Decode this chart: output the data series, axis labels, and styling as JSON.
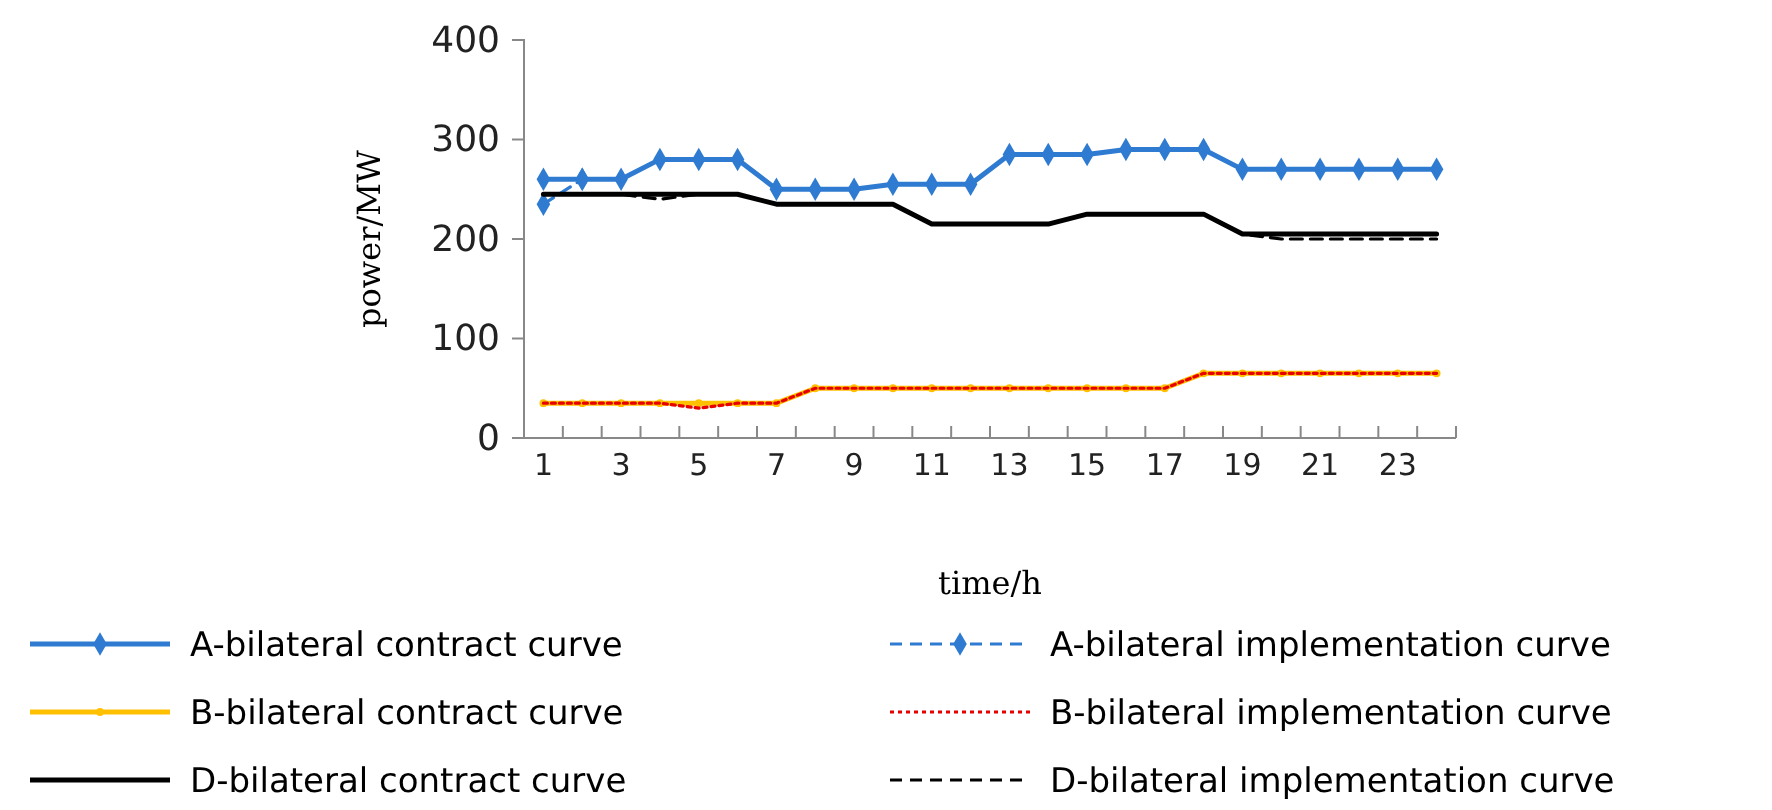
{
  "chart_data": {
    "type": "line",
    "xlabel": "time/h",
    "ylabel": "power/MW",
    "x": [
      1,
      2,
      3,
      4,
      5,
      6,
      7,
      8,
      9,
      10,
      11,
      12,
      13,
      14,
      15,
      16,
      17,
      18,
      19,
      20,
      21,
      22,
      23,
      24
    ],
    "xlim": [
      0.5,
      24.5
    ],
    "xticks": [
      1,
      3,
      5,
      7,
      9,
      11,
      13,
      15,
      17,
      19,
      21,
      23,
      {
        "value": 1.5,
        "label": null
      },
      {
        "value": 2.5,
        "label": null
      },
      {
        "value": 3.5,
        "label": null
      },
      {
        "value": 4.5,
        "label": null
      },
      {
        "value": 5.5,
        "label": null
      },
      {
        "value": 6.5,
        "label": null
      },
      {
        "value": 7.5,
        "label": null
      },
      {
        "value": 8.5,
        "label": null
      },
      {
        "value": 9.5,
        "label": null
      },
      {
        "value": 10.5,
        "label": null
      },
      {
        "value": 11.5,
        "label": null
      },
      {
        "value": 12.5,
        "label": null
      },
      {
        "value": 13.5,
        "label": null
      },
      {
        "value": 14.5,
        "label": null
      },
      {
        "value": 15.5,
        "label": null
      },
      {
        "value": 16.5,
        "label": null
      },
      {
        "value": 17.5,
        "label": null
      },
      {
        "value": 18.5,
        "label": null
      },
      {
        "value": 19.5,
        "label": null
      },
      {
        "value": 20.5,
        "label": null
      },
      {
        "value": 21.5,
        "label": null
      },
      {
        "value": 22.5,
        "label": null
      },
      {
        "value": 23.5,
        "label": null
      },
      {
        "value": 24.5,
        "label": null
      }
    ],
    "ylim": [
      0,
      400
    ],
    "yticks": [
      0,
      100,
      200,
      300,
      400
    ],
    "grid": false,
    "legend": "bottom",
    "series": [
      {
        "name": "A-bilateral contract curve",
        "color": "#2e7bd1",
        "marker": "diamond",
        "line_style": "solid",
        "values": [
          260,
          260,
          260,
          280,
          280,
          280,
          250,
          250,
          250,
          255,
          255,
          255,
          285,
          285,
          285,
          290,
          290,
          290,
          270,
          270,
          270,
          270,
          270,
          270
        ]
      },
      {
        "name": "A-bilateral implementation curve",
        "color": "#2e7bd1",
        "marker": "diamond",
        "line_style": "dashed",
        "values": [
          235,
          260,
          null,
          null,
          null,
          null,
          null,
          null,
          null,
          null,
          null,
          null,
          null,
          null,
          null,
          null,
          null,
          null,
          null,
          null,
          null,
          null,
          null,
          null
        ]
      },
      {
        "name": "B-bilateral contract curve",
        "color": "#ffc000",
        "marker": "circle",
        "line_style": "solid",
        "values": [
          35,
          35,
          35,
          35,
          35,
          35,
          35,
          50,
          50,
          50,
          50,
          50,
          50,
          50,
          50,
          50,
          50,
          65,
          65,
          65,
          65,
          65,
          65,
          65
        ]
      },
      {
        "name": "B-bilateral implementation curve",
        "color": "#e60000",
        "marker": "none",
        "line_style": "dotted",
        "values": [
          35,
          35,
          35,
          35,
          30,
          35,
          35,
          50,
          50,
          50,
          50,
          50,
          50,
          50,
          50,
          50,
          50,
          65,
          65,
          65,
          65,
          65,
          65,
          65
        ]
      },
      {
        "name": "D-bilateral contract curve",
        "color": "#000000",
        "marker": "none",
        "line_style": "solid",
        "values": [
          245,
          245,
          245,
          245,
          245,
          245,
          235,
          235,
          235,
          235,
          215,
          215,
          215,
          215,
          225,
          225,
          225,
          225,
          205,
          205,
          205,
          205,
          205,
          205
        ]
      },
      {
        "name": "D-bilateral implementation curve",
        "color": "#000000",
        "marker": "none",
        "line_style": "dashed",
        "values": [
          245,
          245,
          245,
          240,
          245,
          245,
          235,
          235,
          235,
          235,
          215,
          215,
          215,
          215,
          225,
          225,
          225,
          225,
          205,
          200,
          200,
          200,
          200,
          200
        ]
      }
    ]
  }
}
